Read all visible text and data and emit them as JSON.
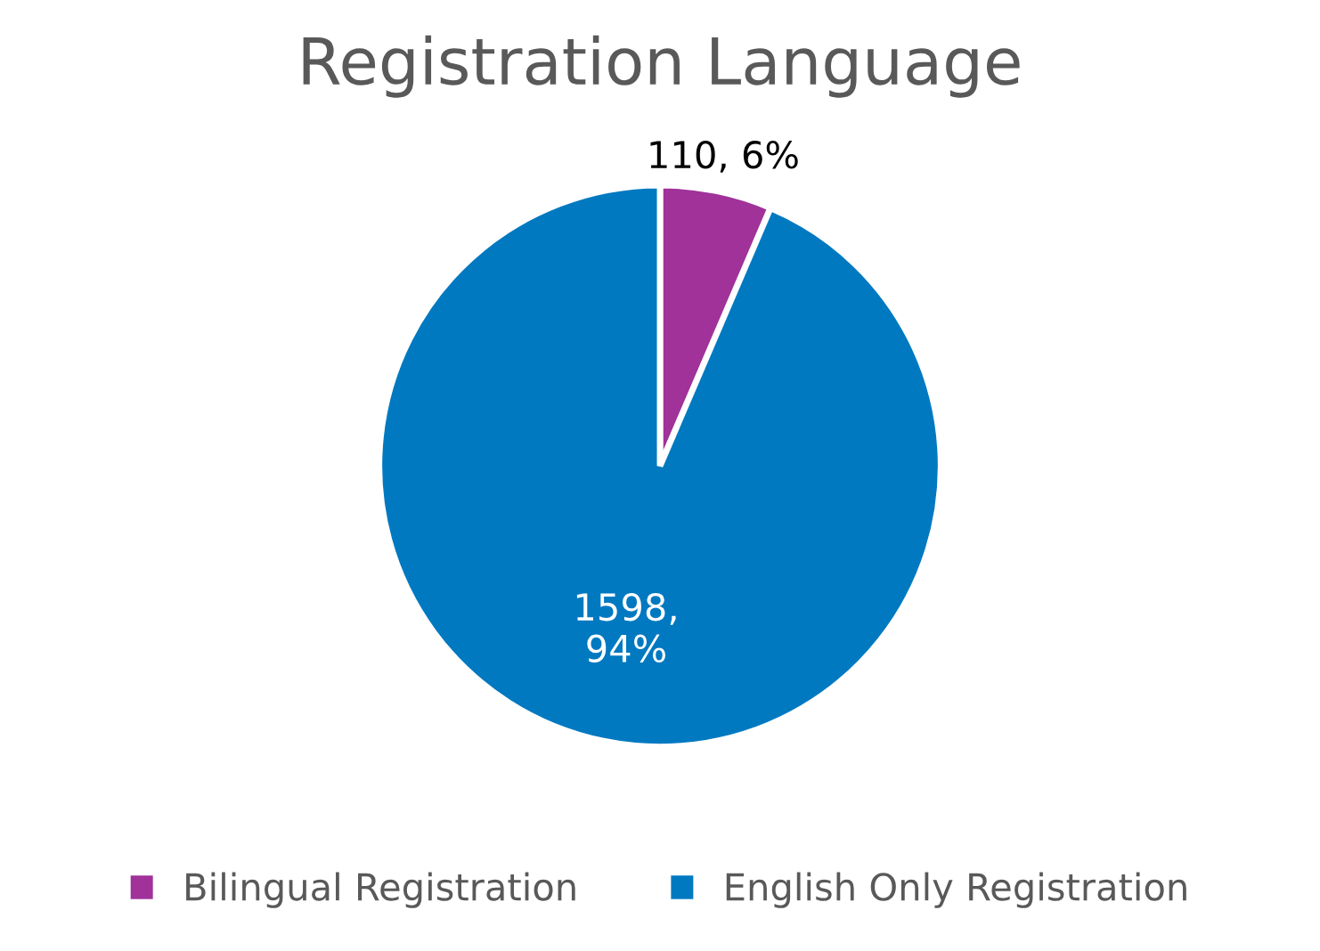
{
  "chart_data": {
    "type": "pie",
    "title": "Registration Language",
    "categories": [
      "Bilingual Registration",
      "English Only Registration"
    ],
    "values": [
      110,
      1598
    ],
    "colors": [
      "#a0329a",
      "#0079c1"
    ],
    "value_labels": [
      "110, 6%",
      "1598,\n94%"
    ],
    "legend": "bottom"
  }
}
